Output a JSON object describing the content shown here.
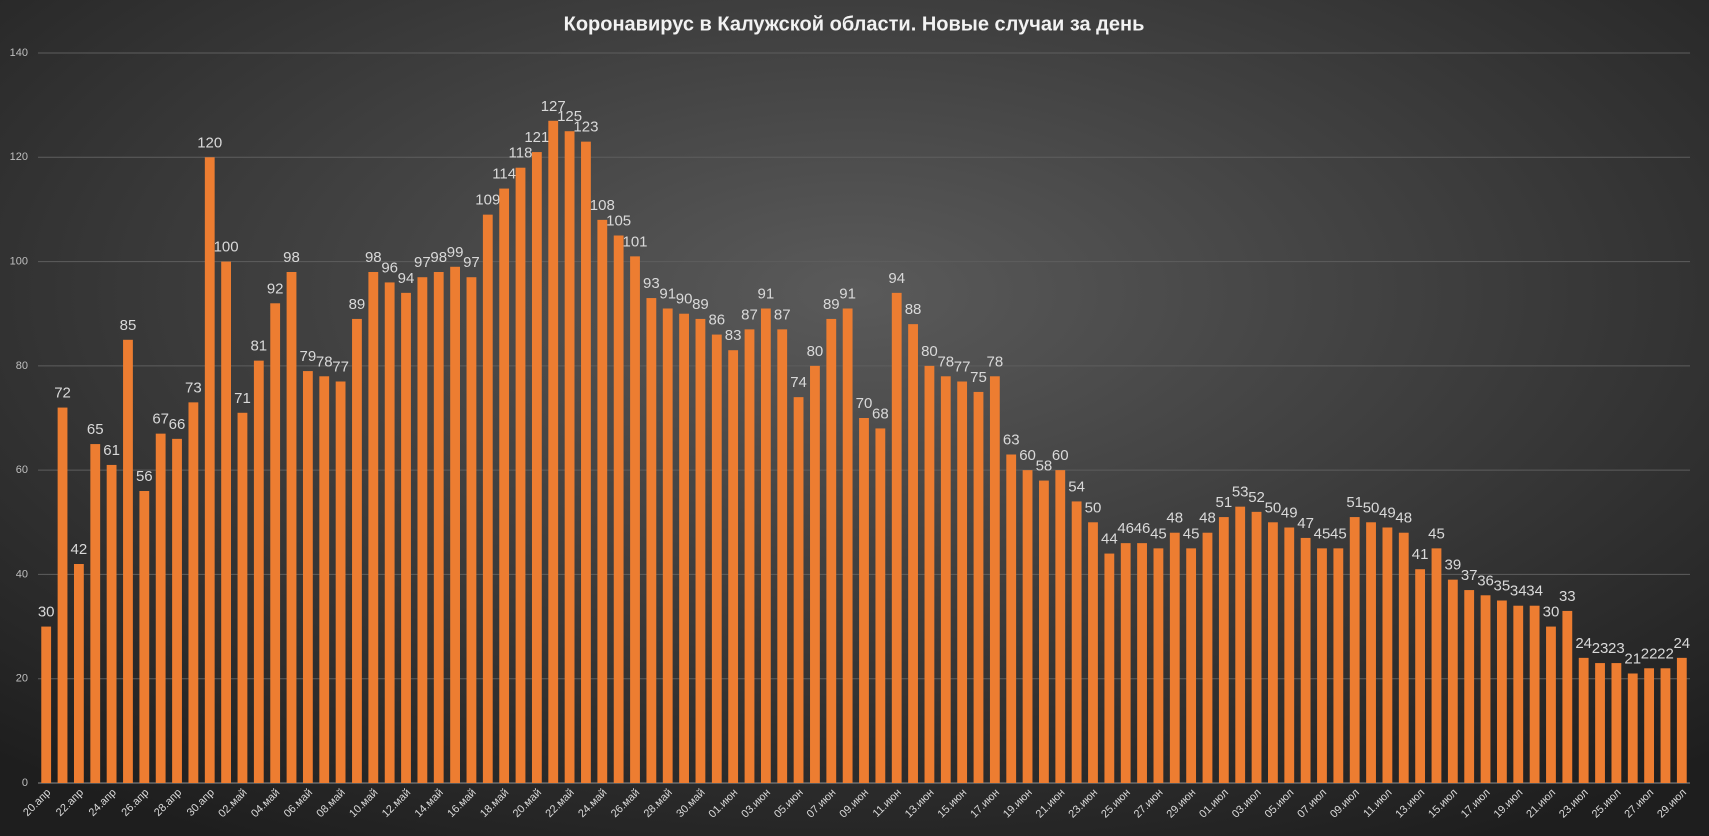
{
  "chart_data": {
    "type": "bar",
    "title": "Коронавирус в Калужской области. Новые случаи за день",
    "categories": [
      "20.апр",
      null,
      "22.апр",
      null,
      "24.апр",
      null,
      "26.апр",
      null,
      "28.апр",
      null,
      "30.апр",
      null,
      "02.май",
      null,
      "04.май",
      null,
      "06.май",
      null,
      "08.май",
      null,
      "10.май",
      null,
      "12.май",
      null,
      "14.май",
      null,
      "16.май",
      null,
      "18.май",
      null,
      "20.май",
      null,
      "22.май",
      null,
      "24.май",
      null,
      "26.май",
      null,
      "28.май",
      null,
      "30.май",
      null,
      "01.июн",
      null,
      "03.июн",
      null,
      "05.июн",
      null,
      "07.июн",
      null,
      "09.июн",
      null,
      "11.июн",
      null,
      "13.июн",
      null,
      "15.июн",
      null,
      "17.июн",
      null,
      "19.июн",
      null,
      "21.июн",
      null,
      "23.июн",
      null,
      "25.июн",
      null,
      "27.июн",
      null,
      "29.июн",
      null,
      "01.июл",
      null,
      "03.июл",
      null,
      "05.июл",
      null,
      "07.июл",
      null,
      "09.июл",
      null,
      "11.июл",
      null,
      "13.июл",
      null,
      "15.июл",
      null,
      "17.июл",
      null,
      "19.июл",
      null,
      "21.июл",
      null,
      "23.июл",
      null,
      "25.июл",
      null,
      "27.июл",
      null,
      "29.июл"
    ],
    "values": [
      30,
      72,
      42,
      65,
      61,
      85,
      56,
      67,
      66,
      73,
      120,
      100,
      71,
      81,
      92,
      98,
      79,
      78,
      77,
      89,
      98,
      96,
      94,
      97,
      98,
      99,
      97,
      109,
      114,
      118,
      121,
      127,
      125,
      123,
      108,
      105,
      101,
      93,
      91,
      90,
      89,
      86,
      83,
      87,
      91,
      87,
      74,
      80,
      89,
      91,
      70,
      68,
      94,
      88,
      80,
      78,
      77,
      75,
      78,
      63,
      60,
      58,
      60,
      54,
      50,
      44,
      46,
      46,
      45,
      48,
      45,
      48,
      51,
      53,
      52,
      50,
      49,
      47,
      45,
      45,
      51,
      50,
      49,
      48,
      41,
      45,
      39,
      37,
      36,
      35,
      34,
      34,
      30,
      33,
      24,
      23,
      23,
      21,
      22,
      22,
      24
    ],
    "color": "#ed7d31",
    "ylim": [
      0,
      140
    ],
    "yticks": [
      0,
      20,
      40,
      60,
      80,
      100,
      120,
      140
    ],
    "grid": true
  }
}
